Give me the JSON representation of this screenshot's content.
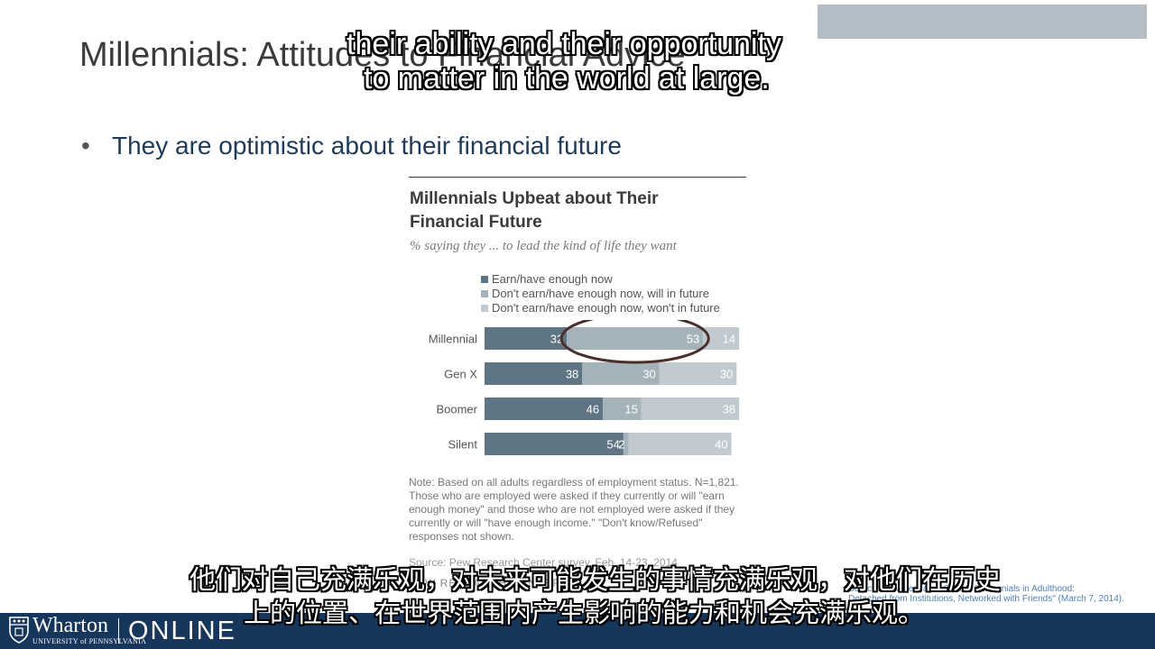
{
  "slide": {
    "title": "Millennials: Attitudes to Financial Advice",
    "bullet": "They are optimistic about their financial future"
  },
  "chart_data": {
    "type": "bar",
    "orientation": "horizontal-stacked",
    "title": "Millennials Upbeat about Their Financial Future",
    "title_lines": [
      "Millennials Upbeat about Their",
      "Financial Future"
    ],
    "subtitle": "% saying they ... to lead the kind of life they want",
    "categories": [
      "Millennial",
      "Gen X",
      "Boomer",
      "Silent"
    ],
    "series": [
      {
        "name": "Earn/have enough now",
        "values": [
          32,
          38,
          46,
          54
        ],
        "color": "#5f7584"
      },
      {
        "name": "Don't earn/have enough now, will in future",
        "values": [
          53,
          30,
          15,
          2
        ],
        "color": "#a4b2b9"
      },
      {
        "name": "Don't earn/have enough now, won't in future",
        "values": [
          14,
          30,
          38,
          40
        ],
        "color": "#c1cbcf"
      }
    ],
    "segment_labels": [
      [
        "32",
        "53",
        "14"
      ],
      [
        "38",
        "30",
        "30"
      ],
      [
        "46",
        "15",
        "38"
      ],
      [
        "54",
        "2",
        "40"
      ]
    ],
    "highlight": {
      "category": "Millennial",
      "series": "Don't earn/have enough now, will in future",
      "shape": "ellipse"
    },
    "legend_position": "top",
    "note": "Note: Based on all adults regardless of employment status. N=1,821. Those who are employed were asked if they currently or will \"earn enough money\" and those who are not employed were asked if they currently or will \"have enough income.\" \"Don't know/Refused\" responses not shown.",
    "source": "Source: Pew Research Center survey, Feb. 14-23, 2014",
    "org_logo": "PEW RESEARCH CENTER"
  },
  "citation": {
    "lines": [
      "Source: Pew Research Center, \"Millennials in Adulthood:",
      "Detached from Institutions, Networked with Friends\" (March 7, 2014)."
    ]
  },
  "footer": {
    "brand": "Wharton",
    "university": "UNIVERSITY of PENNSYLVANIA",
    "online": "ONLINE"
  },
  "captions": {
    "en": [
      "their ability and their opportunity",
      "to matter in the world at large."
    ],
    "zh": [
      "他们对自己充满乐观，对未来可能发生的事情充满乐观，对他们在历史",
      "上的位置、在世界范围内产生影响的能力和机会充满乐观。"
    ]
  },
  "colors": {
    "footer_bg": "#16365c",
    "bullet_text": "#1f3b5a",
    "highlight_ellipse": "#4a2e2a"
  }
}
